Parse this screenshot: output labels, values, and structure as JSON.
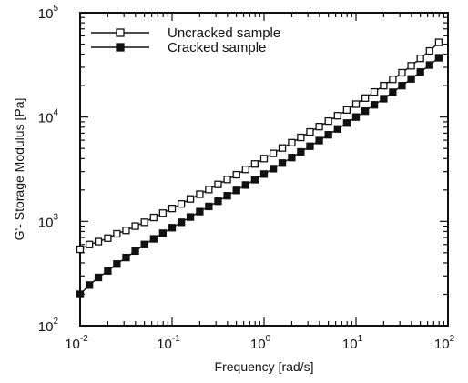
{
  "chart_data": {
    "type": "scatter",
    "xlabel": "Frequency [rad/s]",
    "ylabel": "G'- Storage Modulus [Pa]",
    "x_scale": "log",
    "y_scale": "log",
    "xlim": [
      0.01,
      100
    ],
    "ylim": [
      100,
      100000
    ],
    "grid": false,
    "legend_position": "top-left",
    "x_ticks": [
      {
        "base": "10",
        "exp": "-2",
        "value": 0.01
      },
      {
        "base": "10",
        "exp": "-1",
        "value": 0.1
      },
      {
        "base": "10",
        "exp": "0",
        "value": 1
      },
      {
        "base": "10",
        "exp": "1",
        "value": 10
      },
      {
        "base": "10",
        "exp": "2",
        "value": 100
      }
    ],
    "y_ticks": [
      {
        "base": "10",
        "exp": "2",
        "value": 100
      },
      {
        "base": "10",
        "exp": "3",
        "value": 1000
      },
      {
        "base": "10",
        "exp": "4",
        "value": 10000
      },
      {
        "base": "10",
        "exp": "5",
        "value": 100000
      }
    ],
    "series": [
      {
        "name": "Uncracked sample",
        "marker": "open-square",
        "color": "#111111",
        "x": [
          0.01,
          0.0126,
          0.0158,
          0.02,
          0.0251,
          0.0316,
          0.0398,
          0.0501,
          0.0631,
          0.0794,
          0.1,
          0.126,
          0.158,
          0.2,
          0.251,
          0.316,
          0.398,
          0.501,
          0.631,
          0.794,
          1.0,
          1.26,
          1.58,
          2.0,
          2.51,
          3.16,
          3.98,
          5.01,
          6.31,
          7.94,
          10.0,
          12.6,
          15.8,
          20.0,
          25.1,
          31.6,
          39.8,
          50.1,
          63.1,
          79.4
        ],
        "y": [
          540,
          600,
          640,
          690,
          760,
          820,
          900,
          980,
          1090,
          1200,
          1330,
          1470,
          1640,
          1820,
          2020,
          2260,
          2520,
          2800,
          3150,
          3550,
          4000,
          4480,
          5050,
          5680,
          6380,
          7200,
          8100,
          9150,
          10300,
          11700,
          13300,
          15200,
          17400,
          20000,
          23000,
          26600,
          31000,
          36500,
          43000,
          52000
        ]
      },
      {
        "name": "Cracked sample",
        "marker": "filled-square",
        "color": "#111111",
        "x": [
          0.01,
          0.0126,
          0.0158,
          0.02,
          0.0251,
          0.0316,
          0.0398,
          0.0501,
          0.0631,
          0.0794,
          0.1,
          0.126,
          0.158,
          0.2,
          0.251,
          0.316,
          0.398,
          0.501,
          0.631,
          0.794,
          1.0,
          1.26,
          1.58,
          2.0,
          2.51,
          3.16,
          3.98,
          5.01,
          6.31,
          7.94,
          10.0,
          12.6,
          15.8,
          20.0,
          25.1,
          31.6,
          39.8,
          50.1,
          63.1,
          79.4
        ],
        "y": [
          200,
          245,
          290,
          335,
          390,
          450,
          520,
          600,
          680,
          770,
          870,
          980,
          1100,
          1240,
          1390,
          1560,
          1760,
          1980,
          2230,
          2510,
          2840,
          3200,
          3620,
          4090,
          4630,
          5250,
          5950,
          6760,
          7690,
          8760,
          10000,
          11400,
          13100,
          15000,
          17300,
          20000,
          23200,
          27000,
          31500,
          37000
        ]
      }
    ]
  }
}
